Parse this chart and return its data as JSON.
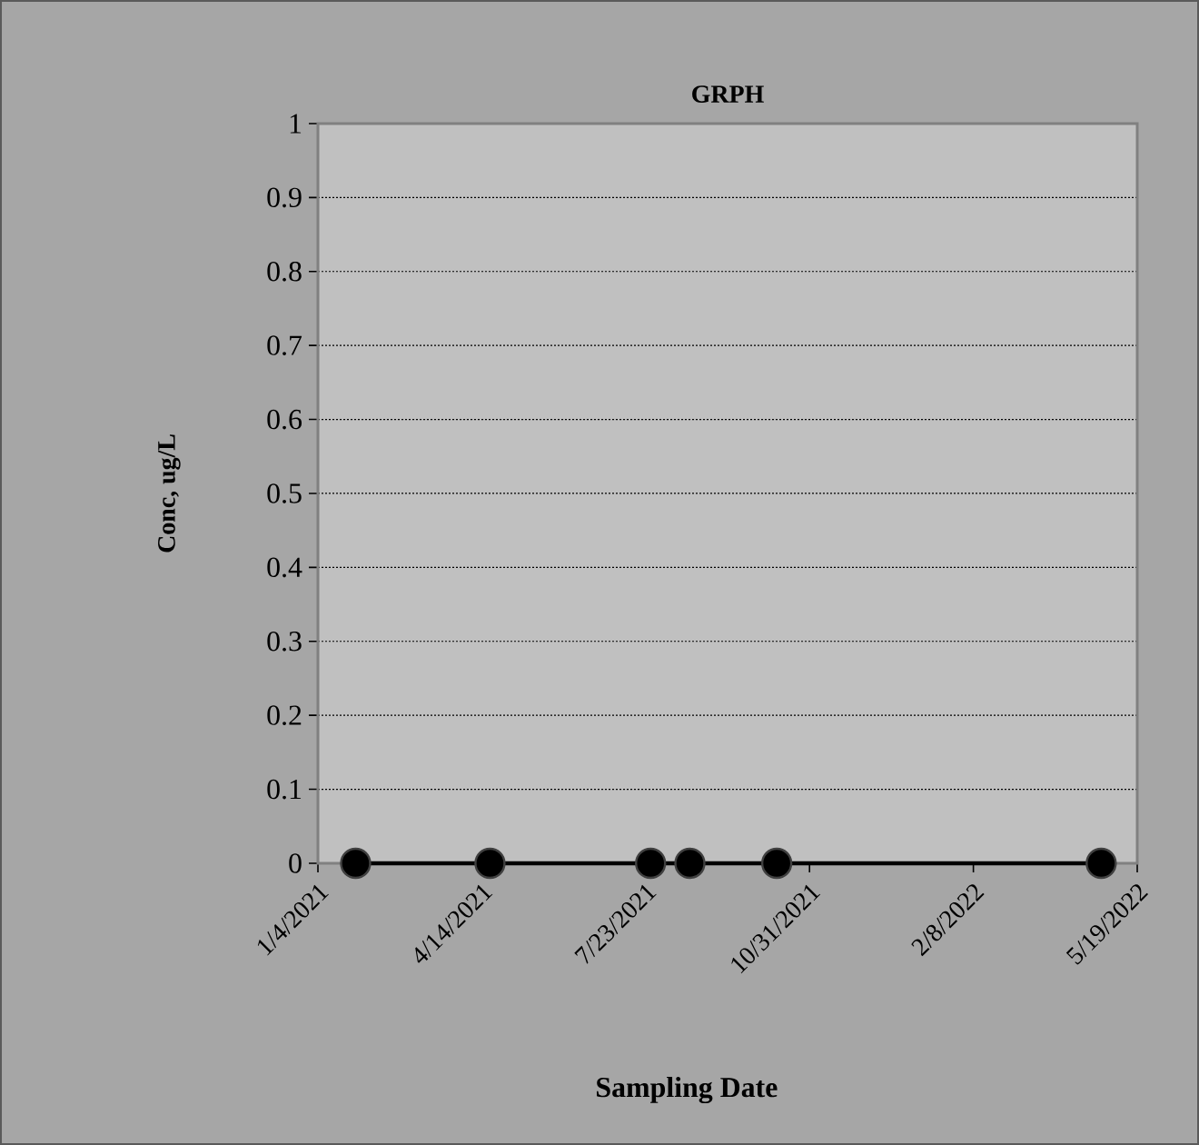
{
  "chart_data": {
    "type": "line",
    "title": "GRPH",
    "xlabel": "Sampling Date",
    "ylabel": "Conc, ug/L",
    "x": [
      "2021-01-27",
      "2021-04-19",
      "2021-07-26",
      "2021-08-19",
      "2021-10-11",
      "2022-04-27"
    ],
    "series": [
      {
        "color": "#000000",
        "values": [
          0,
          0,
          0,
          0,
          0,
          0
        ]
      }
    ],
    "marker": "circle",
    "line_style": "solid",
    "grid": "y",
    "xlim": [
      "2021-01-04",
      "2022-05-19"
    ],
    "xticks": [
      {
        "value": "2021-01-04",
        "label": "1/4/2021"
      },
      {
        "value": "2021-04-14",
        "label": "4/14/2021"
      },
      {
        "value": "2021-07-23",
        "label": "7/23/2021"
      },
      {
        "value": "2021-10-31",
        "label": "10/31/2021"
      },
      {
        "value": "2022-02-08",
        "label": "2/8/2022"
      },
      {
        "value": "2022-05-19",
        "label": "5/19/2022"
      }
    ],
    "ylim": [
      0,
      1
    ],
    "yticks": [
      0,
      0.1,
      0.2,
      0.3,
      0.4,
      0.5,
      0.6,
      0.7,
      0.8,
      0.9,
      1
    ]
  }
}
